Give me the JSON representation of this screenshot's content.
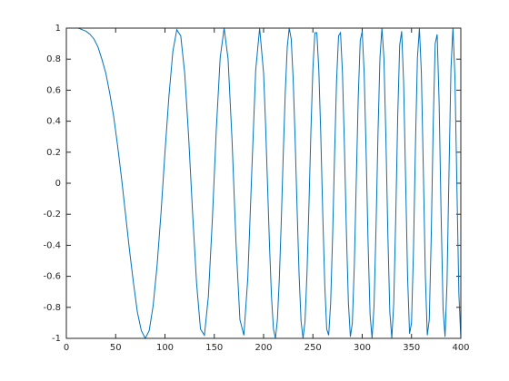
{
  "chart_data": {
    "type": "line",
    "color": "#0072bd",
    "x": [
      0,
      4,
      8,
      12,
      16,
      20,
      24,
      28,
      32,
      36,
      40,
      44,
      48,
      52,
      56,
      60,
      64,
      68,
      72,
      76,
      80,
      84,
      88,
      92,
      96,
      100,
      104,
      108,
      112,
      116,
      120,
      124,
      128,
      132,
      136,
      140,
      144,
      148,
      152,
      156,
      160,
      164,
      168,
      172,
      176,
      180,
      184,
      188,
      192,
      196,
      200,
      202,
      204,
      206,
      208,
      210,
      212,
      214,
      216,
      218,
      220,
      222,
      224,
      226,
      228,
      230,
      232,
      234,
      236,
      238,
      240,
      242,
      244,
      246,
      248,
      250,
      252,
      254,
      256,
      258,
      260,
      262,
      264,
      266,
      268,
      270,
      272,
      274,
      276,
      278,
      280,
      282,
      284,
      286,
      288,
      290,
      292,
      294,
      296,
      298,
      300,
      302,
      304,
      306,
      308,
      310,
      312,
      314,
      316,
      318,
      320,
      322,
      324,
      326,
      328,
      330,
      332,
      334,
      336,
      338,
      340,
      342,
      344,
      346,
      348,
      350,
      352,
      354,
      356,
      358,
      360,
      362,
      364,
      366,
      368,
      370,
      372,
      374,
      376,
      378,
      380,
      382,
      384,
      386,
      388,
      390,
      392,
      394,
      396,
      398,
      400
    ],
    "values": [
      1,
      1,
      1,
      1,
      0.99,
      0.98,
      0.96,
      0.93,
      0.88,
      0.8,
      0.71,
      0.58,
      0.43,
      0.24,
      0.03,
      -0.2,
      -0.43,
      -0.64,
      -0.83,
      -0.95,
      -1,
      -0.95,
      -0.79,
      -0.53,
      -0.19,
      0.2,
      0.56,
      0.85,
      0.99,
      0.95,
      0.71,
      0.3,
      -0.19,
      -0.64,
      -0.94,
      -0.98,
      -0.73,
      -0.24,
      0.34,
      0.81,
      1,
      0.8,
      0.28,
      -0.38,
      -0.88,
      -0.98,
      -0.61,
      0.07,
      0.73,
      1,
      0.71,
      0.38,
      -0.01,
      -0.4,
      -0.73,
      -0.94,
      -1,
      -0.88,
      -0.61,
      -0.23,
      0.2,
      0.59,
      0.88,
      1,
      0.93,
      0.67,
      0.28,
      -0.17,
      -0.59,
      -0.89,
      -1,
      -0.89,
      -0.58,
      -0.14,
      0.34,
      0.74,
      0.97,
      0.97,
      0.73,
      0.31,
      -0.2,
      -0.65,
      -0.94,
      -0.98,
      -0.77,
      -0.34,
      0.19,
      0.66,
      0.95,
      0.97,
      0.71,
      0.23,
      -0.32,
      -0.77,
      -0.99,
      -0.9,
      -0.53,
      0.02,
      0.56,
      0.92,
      0.98,
      0.71,
      0.19,
      -0.4,
      -0.85,
      -1,
      -0.79,
      -0.29,
      0.32,
      0.81,
      1,
      0.81,
      0.3,
      -0.33,
      -0.83,
      -1,
      -0.77,
      -0.22,
      0.43,
      0.89,
      0.98,
      0.65,
      0.03,
      -0.6,
      -0.97,
      -0.9,
      -0.43,
      0.25,
      0.81,
      1,
      0.71,
      0.08,
      -0.59,
      -0.98,
      -0.88,
      -0.34,
      0.38,
      0.9,
      0.96,
      0.52,
      -0.2,
      -0.81,
      -0.99,
      -0.64,
      0.07,
      0.74,
      1,
      0.69,
      -0.01,
      -0.71,
      -1
    ],
    "xlim": [
      0,
      400
    ],
    "xticks": [
      0,
      50,
      100,
      150,
      200,
      250,
      300,
      350,
      400
    ],
    "ylim": [
      -1,
      1
    ],
    "yticks": [
      -1,
      -0.8,
      -0.6,
      -0.4,
      -0.2,
      0,
      0.2,
      0.4,
      0.6,
      0.8,
      1
    ],
    "grid": false
  }
}
